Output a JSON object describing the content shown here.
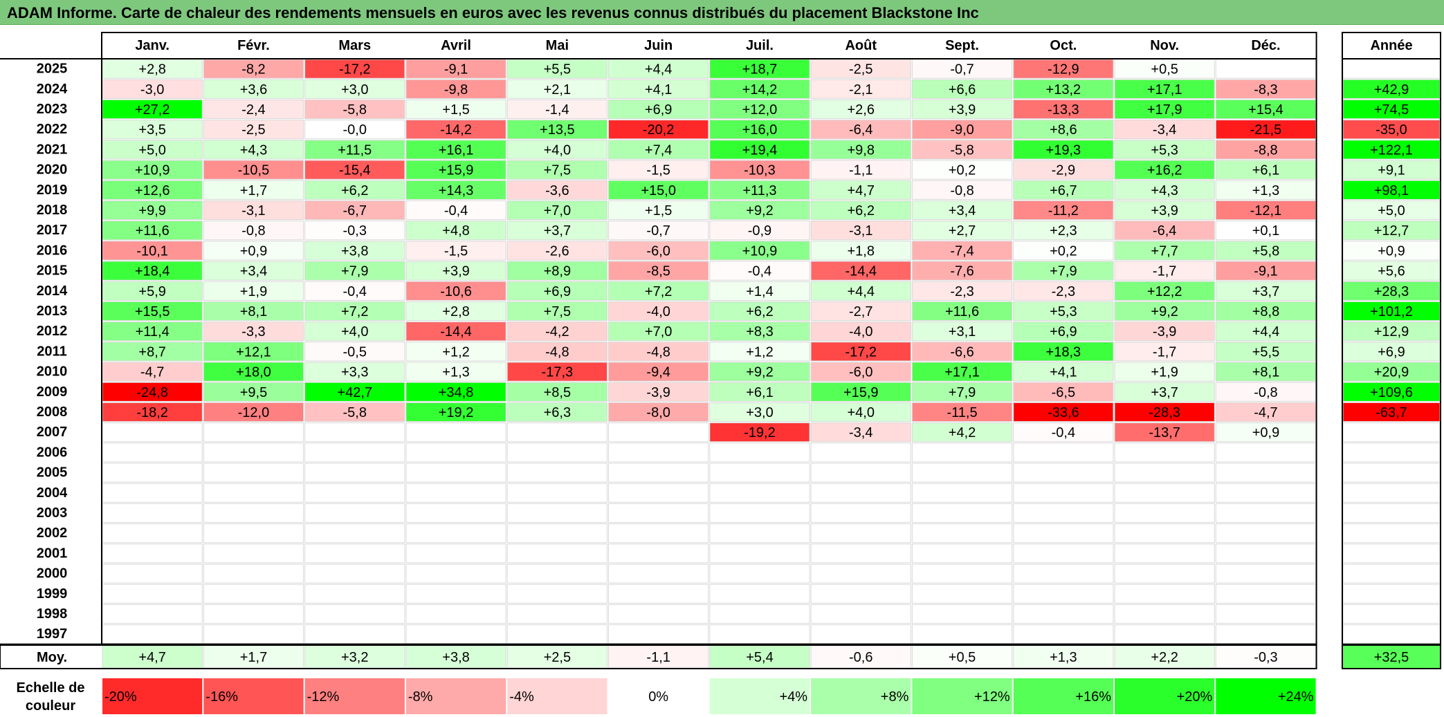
{
  "title": "ADAM Informe. Carte de chaleur des rendements mensuels en euros avec les revenus connus distribués du placement Blackstone Inc",
  "chart_data": {
    "type": "heatmap",
    "months": [
      "Janv.",
      "Févr.",
      "Mars",
      "Avril",
      "Mai",
      "Juin",
      "Juil.",
      "Août",
      "Sept.",
      "Oct.",
      "Nov.",
      "Déc."
    ],
    "year_header": "Année",
    "rows": [
      {
        "year": "2025",
        "months": [
          "+2,8",
          "-8,2",
          "-17,2",
          "-9,1",
          "+5,5",
          "+4,4",
          "+18,7",
          "-2,5",
          "-0,7",
          "-12,9",
          "+0,5",
          ""
        ],
        "annual": ""
      },
      {
        "year": "2024",
        "months": [
          "-3,0",
          "+3,6",
          "+3,0",
          "-9,8",
          "+2,1",
          "+4,1",
          "+14,2",
          "-2,1",
          "+6,6",
          "+13,2",
          "+17,1",
          "-8,3"
        ],
        "annual": "+42,9"
      },
      {
        "year": "2023",
        "months": [
          "+27,2",
          "-2,4",
          "-5,8",
          "+1,5",
          "-1,4",
          "+6,9",
          "+12,0",
          "+2,6",
          "+3,9",
          "-13,3",
          "+17,9",
          "+15,4"
        ],
        "annual": "+74,5"
      },
      {
        "year": "2022",
        "months": [
          "+3,5",
          "-2,5",
          "-0,0",
          "-14,2",
          "+13,5",
          "-20,2",
          "+16,0",
          "-6,4",
          "-9,0",
          "+8,6",
          "-3,4",
          "-21,5"
        ],
        "annual": "-35,0"
      },
      {
        "year": "2021",
        "months": [
          "+5,0",
          "+4,3",
          "+11,5",
          "+16,1",
          "+4,0",
          "+7,4",
          "+19,4",
          "+9,8",
          "-5,8",
          "+19,3",
          "+5,3",
          "-8,8"
        ],
        "annual": "+122,1"
      },
      {
        "year": "2020",
        "months": [
          "+10,9",
          "-10,5",
          "-15,4",
          "+15,9",
          "+7,5",
          "-1,5",
          "-10,3",
          "-1,1",
          "+0,2",
          "-2,9",
          "+16,2",
          "+6,1"
        ],
        "annual": "+9,1"
      },
      {
        "year": "2019",
        "months": [
          "+12,6",
          "+1,7",
          "+6,2",
          "+14,3",
          "-3,6",
          "+15,0",
          "+11,3",
          "+4,7",
          "-0,8",
          "+6,7",
          "+4,3",
          "+1,3"
        ],
        "annual": "+98,1"
      },
      {
        "year": "2018",
        "months": [
          "+9,9",
          "-3,1",
          "-6,7",
          "-0,4",
          "+7,0",
          "+1,5",
          "+9,2",
          "+6,2",
          "+3,4",
          "-11,2",
          "+3,9",
          "-12,1"
        ],
        "annual": "+5,0"
      },
      {
        "year": "2017",
        "months": [
          "+11,6",
          "-0,8",
          "-0,3",
          "+4,8",
          "+3,7",
          "-0,7",
          "-0,9",
          "-3,1",
          "+2,7",
          "+2,3",
          "-6,4",
          "+0,1"
        ],
        "annual": "+12,7"
      },
      {
        "year": "2016",
        "months": [
          "-10,1",
          "+0,9",
          "+3,8",
          "-1,5",
          "-2,6",
          "-6,0",
          "+10,9",
          "+1,8",
          "-7,4",
          "+0,2",
          "+7,7",
          "+5,8"
        ],
        "annual": "+0,9"
      },
      {
        "year": "2015",
        "months": [
          "+18,4",
          "+3,4",
          "+7,9",
          "+3,9",
          "+8,9",
          "-8,5",
          "-0,4",
          "-14,4",
          "-7,6",
          "+7,9",
          "-1,7",
          "-9,1"
        ],
        "annual": "+5,6"
      },
      {
        "year": "2014",
        "months": [
          "+5,9",
          "+1,9",
          "-0,4",
          "-10,6",
          "+6,9",
          "+7,2",
          "+1,4",
          "+4,4",
          "-2,3",
          "-2,3",
          "+12,2",
          "+3,7"
        ],
        "annual": "+28,3"
      },
      {
        "year": "2013",
        "months": [
          "+15,5",
          "+8,1",
          "+7,2",
          "+2,8",
          "+7,5",
          "-4,0",
          "+6,2",
          "-2,7",
          "+11,6",
          "+5,3",
          "+9,2",
          "+8,8"
        ],
        "annual": "+101,2"
      },
      {
        "year": "2012",
        "months": [
          "+11,4",
          "-3,3",
          "+4,0",
          "-14,4",
          "-4,2",
          "+7,0",
          "+8,3",
          "-4,0",
          "+3,1",
          "+6,9",
          "-3,9",
          "+4,4"
        ],
        "annual": "+12,9"
      },
      {
        "year": "2011",
        "months": [
          "+8,7",
          "+12,1",
          "-0,5",
          "+1,2",
          "-4,8",
          "-4,8",
          "+1,2",
          "-17,2",
          "-6,6",
          "+18,3",
          "-1,7",
          "+5,5"
        ],
        "annual": "+6,9"
      },
      {
        "year": "2010",
        "months": [
          "-4,7",
          "+18,0",
          "+3,3",
          "+1,3",
          "-17,3",
          "-9,4",
          "+9,2",
          "-6,0",
          "+17,1",
          "+4,1",
          "+1,9",
          "+8,1"
        ],
        "annual": "+20,9"
      },
      {
        "year": "2009",
        "months": [
          "-24,8",
          "+9,5",
          "+42,7",
          "+34,8",
          "+8,5",
          "-3,9",
          "+6,1",
          "+15,9",
          "+7,9",
          "-6,5",
          "+3,7",
          "-0,8"
        ],
        "annual": "+109,6"
      },
      {
        "year": "2008",
        "months": [
          "-18,2",
          "-12,0",
          "-5,8",
          "+19,2",
          "+6,3",
          "-8,0",
          "+3,0",
          "+4,0",
          "-11,5",
          "-33,6",
          "-28,3",
          "-4,7"
        ],
        "annual": "-63,7"
      },
      {
        "year": "2007",
        "months": [
          "",
          "",
          "",
          "",
          "",
          "",
          "-19,2",
          "-3,4",
          "+4,2",
          "-0,4",
          "-13,7",
          "+0,9"
        ],
        "annual": ""
      },
      {
        "year": "2006",
        "months": [
          "",
          "",
          "",
          "",
          "",
          "",
          "",
          "",
          "",
          "",
          "",
          ""
        ],
        "annual": ""
      },
      {
        "year": "2005",
        "months": [
          "",
          "",
          "",
          "",
          "",
          "",
          "",
          "",
          "",
          "",
          "",
          ""
        ],
        "annual": ""
      },
      {
        "year": "2004",
        "months": [
          "",
          "",
          "",
          "",
          "",
          "",
          "",
          "",
          "",
          "",
          "",
          ""
        ],
        "annual": ""
      },
      {
        "year": "2003",
        "months": [
          "",
          "",
          "",
          "",
          "",
          "",
          "",
          "",
          "",
          "",
          "",
          ""
        ],
        "annual": ""
      },
      {
        "year": "2002",
        "months": [
          "",
          "",
          "",
          "",
          "",
          "",
          "",
          "",
          "",
          "",
          "",
          ""
        ],
        "annual": ""
      },
      {
        "year": "2001",
        "months": [
          "",
          "",
          "",
          "",
          "",
          "",
          "",
          "",
          "",
          "",
          "",
          ""
        ],
        "annual": ""
      },
      {
        "year": "2000",
        "months": [
          "",
          "",
          "",
          "",
          "",
          "",
          "",
          "",
          "",
          "",
          "",
          ""
        ],
        "annual": ""
      },
      {
        "year": "1999",
        "months": [
          "",
          "",
          "",
          "",
          "",
          "",
          "",
          "",
          "",
          "",
          "",
          ""
        ],
        "annual": ""
      },
      {
        "year": "1998",
        "months": [
          "",
          "",
          "",
          "",
          "",
          "",
          "",
          "",
          "",
          "",
          "",
          ""
        ],
        "annual": ""
      },
      {
        "year": "1997",
        "months": [
          "",
          "",
          "",
          "",
          "",
          "",
          "",
          "",
          "",
          "",
          "",
          ""
        ],
        "annual": ""
      }
    ],
    "average": {
      "label": "Moy.",
      "months": [
        "+4,7",
        "+1,7",
        "+3,2",
        "+3,8",
        "+2,5",
        "-1,1",
        "+5,4",
        "-0,6",
        "+0,5",
        "+1,3",
        "+2,2",
        "-0,3"
      ],
      "annual": "+32,5"
    },
    "color_scale": {
      "label": "Echelle de couleur",
      "steps": [
        "-20%",
        "-16%",
        "-12%",
        "-8%",
        "-4%",
        "0%",
        "+4%",
        "+8%",
        "+12%",
        "+16%",
        "+20%",
        "+24%"
      ]
    },
    "colors": {
      "negative_max": "#ff0000",
      "neutral": "#ffffff",
      "positive_max": "#00ff00",
      "title_bg": "#7ec87e"
    }
  }
}
